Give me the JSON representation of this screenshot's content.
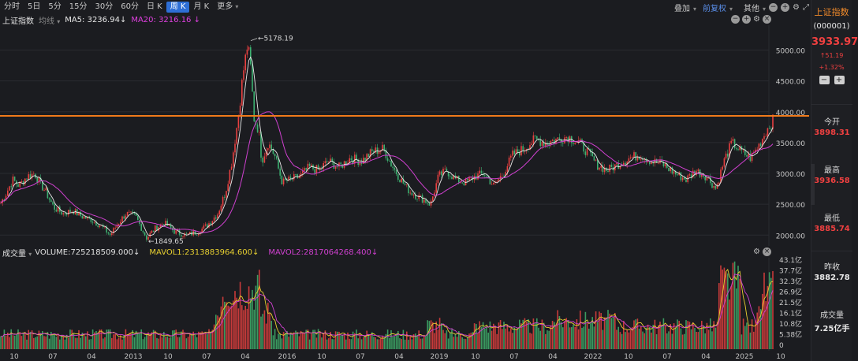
{
  "toolbar": {
    "tabs": [
      "分时",
      "5日",
      "5分",
      "15分",
      "30分",
      "60分",
      "日 K",
      "周 K",
      "月 K",
      "更多"
    ],
    "active_tab": 7,
    "overlay": "叠加",
    "adjust": "前复权",
    "other": "其他"
  },
  "price_header": {
    "title": "上证指数",
    "indicator": "均线",
    "ma5": "MA5: 3236.94",
    "ma20": "MA20: 3216.16"
  },
  "volume_header": {
    "title": "成交量",
    "volume": "VOLUME:725218509.000",
    "mavol1": "MAVOL1:2313883964.600",
    "mavol2": "MAVOL2:2817064268.400"
  },
  "side": {
    "name": "上证指数",
    "code": "(000001)",
    "price": "3933.97",
    "change": "51.19",
    "change_pct": "+1.32%",
    "open_label": "今开",
    "open": "3898.31",
    "high_label": "最高",
    "high": "3936.58",
    "low_label": "最低",
    "low": "3885.74",
    "prev_label": "昨收",
    "prev": "3882.78",
    "vol_label": "成交量",
    "vol": "7.25亿手"
  },
  "chart_data": {
    "type": "candlestick",
    "price_axis": {
      "ticks": [
        "5000.00",
        "4500.00",
        "4000.00",
        "3500.00",
        "3000.00",
        "2500.00",
        "2000.00"
      ],
      "ylim": [
        1850,
        5250
      ]
    },
    "annotations": {
      "max": "5178.19",
      "min": "1849.65"
    },
    "reference_line": 3934,
    "volume_axis": {
      "ticks": [
        "43.1亿",
        "37.7亿",
        "32.3亿",
        "26.9亿",
        "21.5亿",
        "16.1亿",
        "10.8亿",
        "5.38亿",
        "0"
      ]
    },
    "x_ticks": [
      "10",
      "07",
      "04",
      "2013",
      "10",
      "07",
      "04",
      "2016",
      "10",
      "07",
      "04",
      "2019",
      "10",
      "07",
      "04",
      "2022",
      "10",
      "07",
      "04",
      "2025",
      "10"
    ],
    "series": [
      {
        "name": "MA5",
        "color": "#e8e8e8"
      },
      {
        "name": "MA20",
        "color": "#d040d0"
      },
      {
        "name": "MAVOL1",
        "color": "#e8d030"
      },
      {
        "name": "MAVOL2",
        "color": "#d040d0"
      }
    ],
    "close_path": [
      [
        0,
        2500
      ],
      [
        8,
        2680
      ],
      [
        16,
        2900
      ],
      [
        24,
        2800
      ],
      [
        34,
        2950
      ],
      [
        44,
        3000
      ],
      [
        50,
        2850
      ],
      [
        58,
        2700
      ],
      [
        68,
        2450
      ],
      [
        80,
        2350
      ],
      [
        92,
        2400
      ],
      [
        104,
        2300
      ],
      [
        116,
        2250
      ],
      [
        128,
        2150
      ],
      [
        140,
        2000
      ],
      [
        150,
        2200
      ],
      [
        160,
        2350
      ],
      [
        172,
        2300
      ],
      [
        186,
        1950
      ],
      [
        196,
        2100
      ],
      [
        208,
        2200
      ],
      [
        222,
        2050
      ],
      [
        236,
        2000
      ],
      [
        250,
        2050
      ],
      [
        262,
        2150
      ],
      [
        276,
        2350
      ],
      [
        286,
        2700
      ],
      [
        294,
        3200
      ],
      [
        302,
        3900
      ],
      [
        308,
        4600
      ],
      [
        314,
        5100
      ],
      [
        318,
        4700
      ],
      [
        322,
        3900
      ],
      [
        328,
        3700
      ],
      [
        332,
        3200
      ],
      [
        340,
        3500
      ],
      [
        348,
        3300
      ],
      [
        358,
        2850
      ],
      [
        368,
        2900
      ],
      [
        380,
        2950
      ],
      [
        392,
        3100
      ],
      [
        404,
        3050
      ],
      [
        416,
        3200
      ],
      [
        430,
        3100
      ],
      [
        444,
        3250
      ],
      [
        458,
        3200
      ],
      [
        472,
        3350
      ],
      [
        486,
        3400
      ],
      [
        496,
        3150
      ],
      [
        508,
        2900
      ],
      [
        520,
        2700
      ],
      [
        534,
        2600
      ],
      [
        546,
        2500
      ],
      [
        556,
        2950
      ],
      [
        566,
        3050
      ],
      [
        578,
        2900
      ],
      [
        590,
        2850
      ],
      [
        602,
        2950
      ],
      [
        614,
        3000
      ],
      [
        626,
        2800
      ],
      [
        638,
        3000
      ],
      [
        650,
        3300
      ],
      [
        664,
        3400
      ],
      [
        678,
        3550
      ],
      [
        692,
        3500
      ],
      [
        706,
        3550
      ],
      [
        720,
        3600
      ],
      [
        734,
        3500
      ],
      [
        748,
        3300
      ],
      [
        756,
        3150
      ],
      [
        770,
        3050
      ],
      [
        784,
        3150
      ],
      [
        798,
        3250
      ],
      [
        812,
        3300
      ],
      [
        826,
        3200
      ],
      [
        840,
        3150
      ],
      [
        856,
        3000
      ],
      [
        870,
        2900
      ],
      [
        882,
        3050
      ],
      [
        896,
        2950
      ],
      [
        908,
        2750
      ],
      [
        918,
        3200
      ],
      [
        928,
        3500
      ],
      [
        940,
        3350
      ],
      [
        952,
        3250
      ],
      [
        962,
        3450
      ],
      [
        972,
        3700
      ],
      [
        982,
        3900
      ]
    ]
  }
}
